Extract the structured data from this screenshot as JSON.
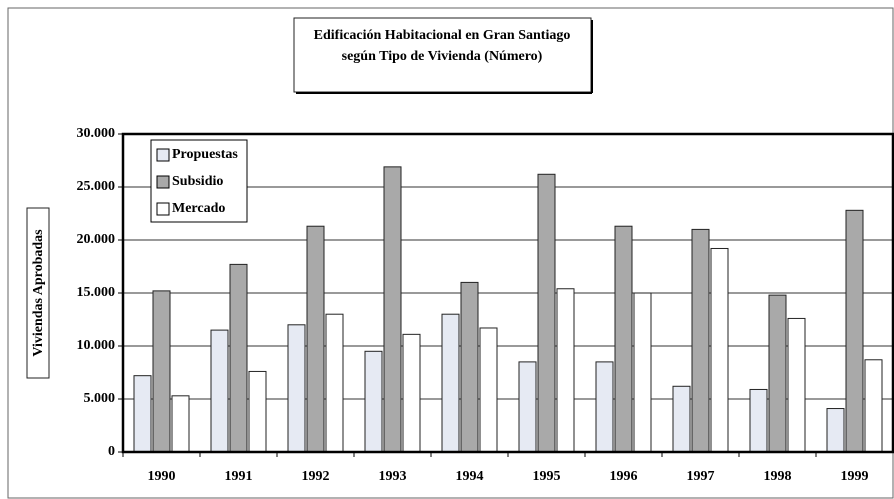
{
  "chart_data": {
    "type": "bar",
    "title": [
      "Edificación Habitacional en Gran Santiago",
      "según Tipo de Vivienda (Número)"
    ],
    "y_label": "Viviendas Aprobadas",
    "categories": [
      "1990",
      "1991",
      "1992",
      "1993",
      "1994",
      "1995",
      "1996",
      "1997",
      "1998",
      "1999"
    ],
    "series": [
      {
        "name": "Propuestas",
        "color": "#e6eaf3",
        "values": [
          7200,
          11500,
          12000,
          9500,
          13000,
          8500,
          8500,
          6200,
          5900,
          4100
        ]
      },
      {
        "name": "Subsidio",
        "color": "#a9a9a9",
        "values": [
          15200,
          17700,
          21300,
          26900,
          16000,
          26200,
          21300,
          21000,
          14800,
          22800
        ]
      },
      {
        "name": "Mercado",
        "color": "#ffffff",
        "values": [
          5300,
          7600,
          13000,
          11100,
          11700,
          15400,
          15000,
          19200,
          12600,
          8700
        ]
      }
    ],
    "ylim": [
      0,
      30000
    ],
    "yticks": [
      0,
      {
        "value": 5000,
        "label": "5.000"
      },
      {
        "value": 10000,
        "label": "10.000"
      },
      {
        "value": 15000,
        "label": "15.000"
      },
      {
        "value": 20000,
        "label": "20.000"
      },
      {
        "value": 25000,
        "label": "25.000"
      },
      {
        "value": 30000,
        "label": "30.000"
      }
    ],
    "grid": true,
    "legend": "top-left"
  }
}
